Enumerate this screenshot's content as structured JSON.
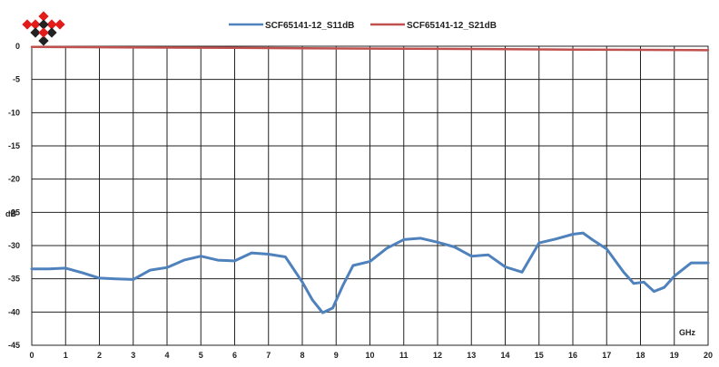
{
  "chart_data": {
    "type": "line",
    "xlabel": "GHz",
    "ylabel": "dB",
    "xlim": [
      0,
      20
    ],
    "ylim": [
      -45,
      0
    ],
    "x_ticks": [
      0,
      1,
      2,
      3,
      4,
      5,
      6,
      7,
      8,
      9,
      10,
      11,
      12,
      13,
      14,
      15,
      16,
      17,
      18,
      19,
      20
    ],
    "y_ticks": [
      0,
      -5,
      -10,
      -15,
      -20,
      -25,
      -30,
      -35,
      -40,
      -45
    ],
    "grid": true,
    "legend_position": "top",
    "series": [
      {
        "name": "SCF65141-12_S11dB",
        "color": "#4f81bd",
        "x": [
          0,
          0.5,
          1,
          1.5,
          2,
          2.5,
          3,
          3.5,
          4,
          4.5,
          5,
          5.5,
          6,
          6.5,
          7,
          7.5,
          8,
          8.3,
          8.6,
          8.9,
          9.2,
          9.5,
          10,
          10.5,
          11,
          11.5,
          12,
          12.5,
          13,
          13.5,
          14,
          14.5,
          15,
          15.5,
          16,
          16.3,
          16.6,
          17,
          17.5,
          17.8,
          18.1,
          18.4,
          18.7,
          19,
          19.5,
          20
        ],
        "y": [
          -33.5,
          -33.5,
          -33.4,
          -34.1,
          -34.9,
          -35,
          -35.1,
          -33.7,
          -33.3,
          -32.2,
          -31.6,
          -32.2,
          -32.3,
          -31.1,
          -31.3,
          -31.7,
          -35.5,
          -38.2,
          -40.1,
          -39.4,
          -36,
          -33,
          -32.4,
          -30.4,
          -29.1,
          -28.9,
          -29.5,
          -30.2,
          -31.6,
          -31.4,
          -33.2,
          -34,
          -29.6,
          -29,
          -28.3,
          -28.1,
          -29.2,
          -30.5,
          -34,
          -35.7,
          -35.5,
          -36.9,
          -36.3,
          -34.6,
          -32.6,
          -32.6
        ]
      },
      {
        "name": "SCF65141-12_S21dB",
        "color": "#c0504d",
        "x": [
          0,
          2,
          4,
          6,
          8,
          10,
          12,
          14,
          16,
          18,
          20
        ],
        "y": [
          -0.1,
          -0.15,
          -0.2,
          -0.25,
          -0.3,
          -0.35,
          -0.4,
          -0.45,
          -0.5,
          -0.55,
          -0.6
        ]
      }
    ]
  },
  "legend": {
    "s11": "SCF65141-12_S11dB",
    "s21": "SCF65141-12_S21dB"
  },
  "labels": {
    "unit_y": "dB",
    "unit_x": "GHz"
  },
  "logo": {
    "name": "red-black-diamond-logo",
    "colors": [
      "#e21b1b",
      "#222222"
    ]
  }
}
